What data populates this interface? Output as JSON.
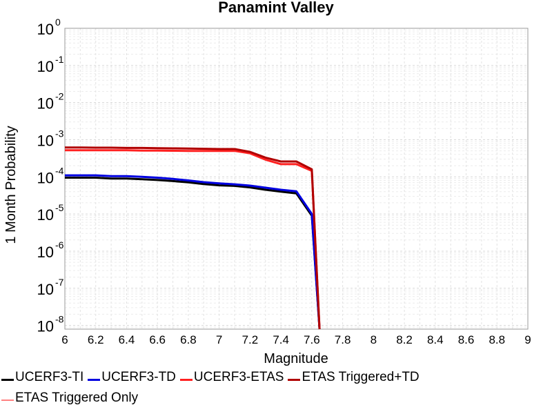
{
  "chart_data": {
    "type": "line",
    "title": "Panamint Valley",
    "xlabel": "Magnitude",
    "ylabel": "1 Month Probability",
    "xlim": [
      6,
      9
    ],
    "ylim_log10": [
      -8.1,
      0
    ],
    "y_scale": "log",
    "x_ticks": [
      "6",
      "6.2",
      "6.4",
      "6.6",
      "6.8",
      "7",
      "7.2",
      "7.4",
      "7.6",
      "7.8",
      "8",
      "8.2",
      "8.4",
      "8.6",
      "8.8",
      "9"
    ],
    "y_ticks": [
      {
        "base": "10",
        "exp": "0"
      },
      {
        "base": "10",
        "exp": "-1"
      },
      {
        "base": "10",
        "exp": "-2"
      },
      {
        "base": "10",
        "exp": "-3"
      },
      {
        "base": "10",
        "exp": "-4"
      },
      {
        "base": "10",
        "exp": "-5"
      },
      {
        "base": "10",
        "exp": "-6"
      },
      {
        "base": "10",
        "exp": "-7"
      },
      {
        "base": "10",
        "exp": "-8"
      }
    ],
    "grid": true,
    "legend_position": "bottom",
    "series": [
      {
        "name": "UCERF3-TI",
        "color": "#000000",
        "x": [
          6.0,
          6.1,
          6.2,
          6.3,
          6.4,
          6.5,
          6.6,
          6.7,
          6.8,
          6.9,
          7.0,
          7.1,
          7.2,
          7.3,
          7.4,
          7.5,
          7.6,
          7.65
        ],
        "y": [
          9.5e-05,
          9.5e-05,
          9.5e-05,
          9e-05,
          9e-05,
          8.6e-05,
          8.2e-05,
          7.7e-05,
          7.1e-05,
          6.4e-05,
          5.9e-05,
          5.7e-05,
          5.2e-05,
          4.5e-05,
          4e-05,
          3.6e-05,
          9e-06,
          5e-09
        ]
      },
      {
        "name": "UCERF3-TD",
        "color": "#0000e0",
        "x": [
          6.0,
          6.1,
          6.2,
          6.3,
          6.4,
          6.5,
          6.6,
          6.7,
          6.8,
          6.9,
          7.0,
          7.1,
          7.2,
          7.3,
          7.4,
          7.5,
          7.6,
          7.65
        ],
        "y": [
          0.00011,
          0.00011,
          0.00011,
          0.000105,
          0.000105,
          0.0001,
          9.5e-05,
          8.8e-05,
          8e-05,
          7.2e-05,
          6.7e-05,
          6.3e-05,
          5.8e-05,
          5.1e-05,
          4.5e-05,
          4.1e-05,
          1e-05,
          5e-09
        ]
      },
      {
        "name": "UCERF3-ETAS",
        "color": "#ff2020",
        "x": [
          6.0,
          6.1,
          6.2,
          6.3,
          6.4,
          6.5,
          6.6,
          6.7,
          6.8,
          6.9,
          7.0,
          7.1,
          7.2,
          7.3,
          7.4,
          7.5,
          7.6,
          7.65
        ],
        "y": [
          0.00052,
          0.00052,
          0.00052,
          0.00052,
          0.00052,
          0.00051,
          0.00051,
          0.000505,
          0.0005,
          0.0005,
          0.0005,
          0.0005,
          0.00043,
          0.00029,
          0.00022,
          0.00022,
          0.000145,
          5e-09
        ]
      },
      {
        "name": "ETAS Triggered+TD",
        "color": "#b00000",
        "x": [
          6.0,
          6.1,
          6.2,
          6.3,
          6.4,
          6.5,
          6.6,
          6.7,
          6.8,
          6.9,
          7.0,
          7.1,
          7.2,
          7.3,
          7.4,
          7.5,
          7.6,
          7.65
        ],
        "y": [
          0.00062,
          0.00062,
          0.00061,
          0.00061,
          0.0006,
          0.0006,
          0.00059,
          0.000585,
          0.00058,
          0.00057,
          0.00056,
          0.00056,
          0.00047,
          0.00033,
          0.00026,
          0.00026,
          0.00016,
          5e-09
        ]
      },
      {
        "name": "ETAS Triggered Only",
        "color": "#ff8080",
        "x": [],
        "y": []
      }
    ]
  }
}
